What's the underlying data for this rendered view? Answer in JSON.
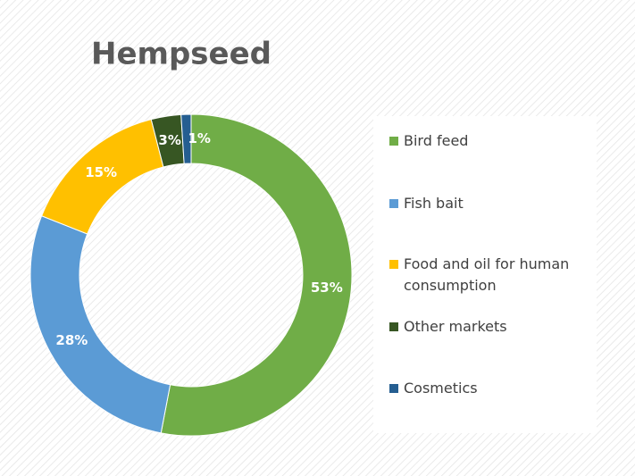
{
  "chart_data": {
    "type": "donut",
    "title": "Hempseed",
    "categories": [
      "Bird feed",
      "Fish bait",
      "Food and oil for human consumption",
      "Other markets",
      "Cosmetics"
    ],
    "values": [
      53,
      28,
      15,
      3,
      1
    ],
    "value_labels": [
      "53%",
      "28%",
      "15%",
      "3%",
      "1%"
    ],
    "colors": [
      "#70ad47",
      "#5b9bd5",
      "#ffc000",
      "#375623",
      "#255e91"
    ],
    "legend": "right"
  }
}
